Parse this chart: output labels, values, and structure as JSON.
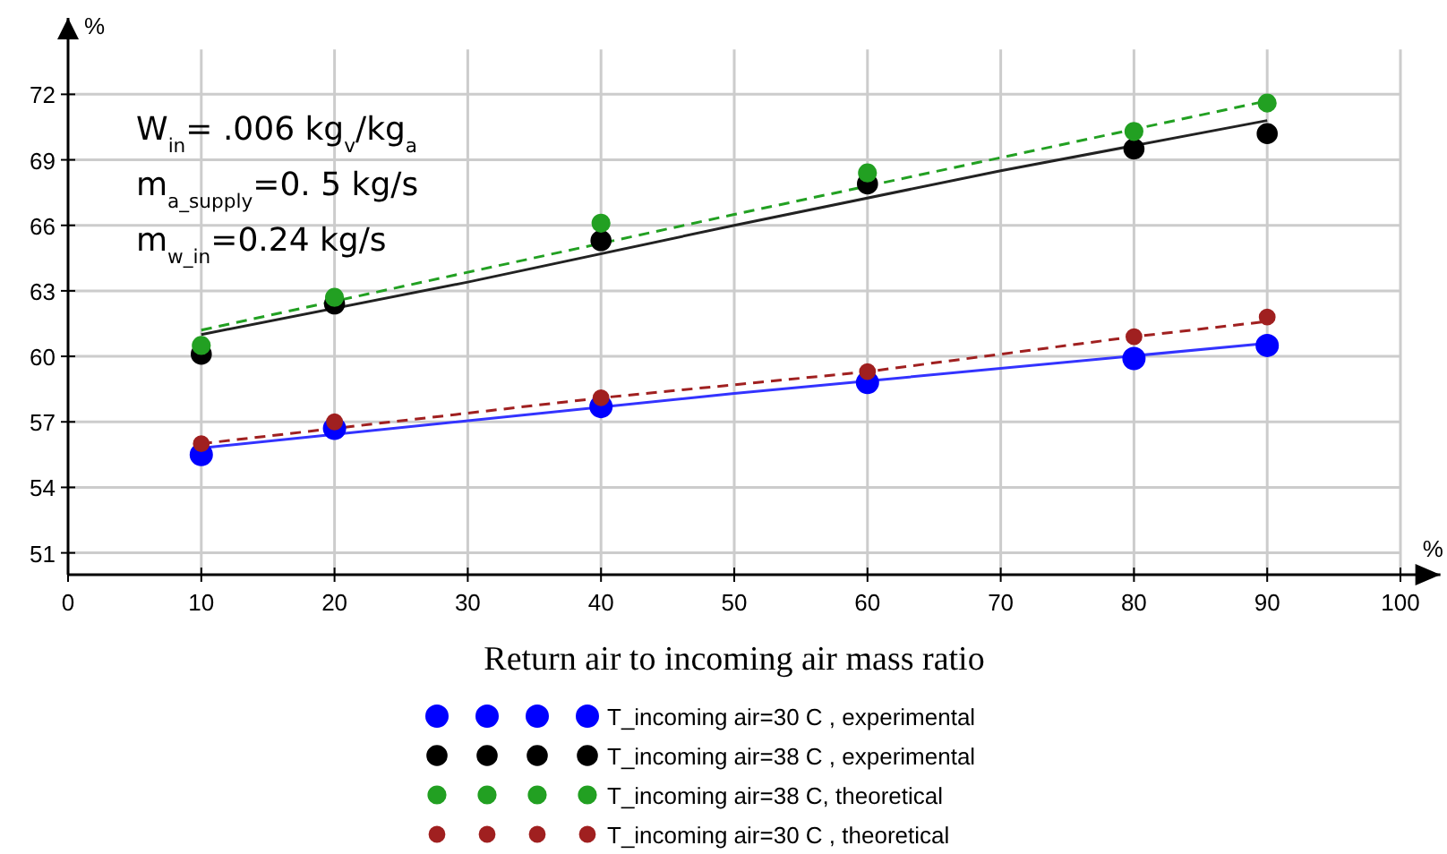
{
  "chart_data": {
    "type": "scatter",
    "xlabel": "Return air to incoming air mass ratio",
    "ylabel": "%",
    "x": [
      10,
      20,
      40,
      60,
      80,
      90
    ],
    "series": [
      {
        "name": "T_incoming air=30 C , experimental",
        "color": "#0000ff",
        "values": [
          55.5,
          56.7,
          57.7,
          58.8,
          59.9,
          60.5
        ]
      },
      {
        "name": "T_incoming air=38 C , experimental",
        "color": "#000000",
        "values": [
          60.1,
          62.4,
          65.3,
          67.9,
          69.5,
          70.2
        ]
      },
      {
        "name": "T_incoming air=38 C, theoretical",
        "color": "#22a022",
        "values": [
          60.5,
          62.7,
          66.1,
          68.4,
          70.3,
          71.6
        ]
      },
      {
        "name": "T_incoming air=30 C , theoretical",
        "color": "#a02020",
        "values": [
          56.0,
          57.0,
          58.1,
          59.3,
          60.9,
          61.8
        ]
      },
      {
        "type": "line",
        "color": "#3333ff",
        "x": [
          10,
          50,
          90
        ],
        "values": [
          55.8,
          58.3,
          60.6
        ],
        "line_style": "solid",
        "marker": "none"
      },
      {
        "type": "line",
        "color": "#222222",
        "x": [
          10,
          30,
          50,
          70,
          90
        ],
        "values": [
          61.0,
          63.4,
          66.0,
          68.5,
          70.8
        ],
        "line_style": "solid",
        "marker": "none"
      },
      {
        "type": "line",
        "color": "#22a022",
        "x": [
          10,
          50,
          90
        ],
        "values": [
          61.2,
          66.5,
          71.7
        ],
        "line_style": "dashed",
        "marker": "none"
      },
      {
        "type": "line",
        "color": "#a02020",
        "x": [
          10,
          40,
          60,
          80,
          90
        ],
        "values": [
          56.0,
          58.1,
          59.3,
          60.9,
          61.6
        ],
        "line_style": "dashed",
        "marker": "none"
      }
    ],
    "xlim": [
      0,
      103
    ],
    "xticks": [
      0,
      10,
      20,
      30,
      40,
      50,
      60,
      70,
      80,
      90,
      100
    ],
    "ylim": [
      50,
      75.5
    ],
    "yticks": [
      51,
      54,
      57,
      60,
      63,
      66,
      69,
      72
    ],
    "grid": true,
    "legend": "bottom",
    "marker": "circle",
    "annotations": [
      "%",
      "W$_{in}$=   .006 kg$_{v}$/kg$_{a}$",
      "m$_{a_supply}$=0. 5 kg/s",
      "m$_{w_in}$=0.24 kg/s"
    ]
  }
}
